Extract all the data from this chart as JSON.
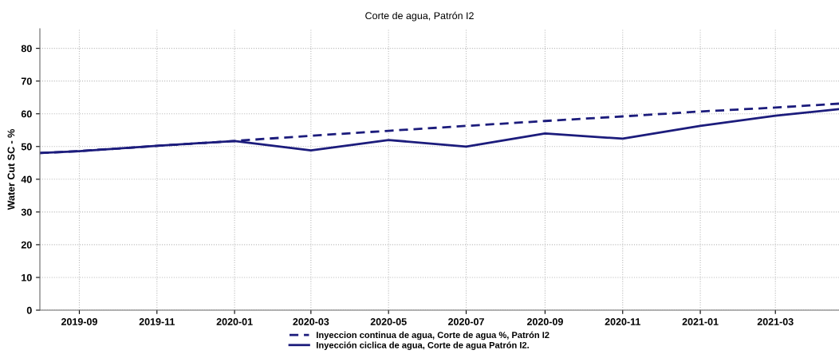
{
  "chart_data": {
    "type": "line",
    "title": "Corte de agua, Patrón I2",
    "ylabel": "Water Cut SC - %",
    "series": [
      {
        "name": "Inyeccion continua de agua, Corte de agua %, Patrón I2",
        "color": "#1c1c7c",
        "line_style": "dashed",
        "x": [
          "2019-08-01",
          "2019-09-01",
          "2019-11-01",
          "2020-01-01",
          "2020-03-01",
          "2020-05-01",
          "2020-07-01",
          "2020-09-01",
          "2020-11-01",
          "2021-01-01",
          "2021-03-01",
          "2021-04-20"
        ],
        "values": [
          48.0,
          48.6,
          50.2,
          51.7,
          53.3,
          54.8,
          56.3,
          57.8,
          59.2,
          60.7,
          61.9,
          63.1
        ]
      },
      {
        "name": "Inyección ciclica de agua, Corte de agua Patrón I2.",
        "color": "#1c1c7c",
        "line_style": "solid",
        "x": [
          "2019-08-01",
          "2019-09-01",
          "2019-11-01",
          "2020-01-01",
          "2020-03-01",
          "2020-05-01",
          "2020-07-01",
          "2020-09-01",
          "2020-11-01",
          "2021-01-01",
          "2021-03-01",
          "2021-04-20"
        ],
        "values": [
          48.0,
          48.6,
          50.2,
          51.7,
          48.8,
          52.0,
          50.0,
          54.0,
          52.4,
          56.3,
          59.4,
          61.4
        ]
      }
    ],
    "xlim": [
      "2019-08-01",
      "2021-04-20"
    ],
    "xticks": [
      {
        "value": "2019-09-01",
        "label": "2019-09"
      },
      {
        "value": "2019-11-01",
        "label": "2019-11"
      },
      {
        "value": "2020-01-01",
        "label": "2020-01"
      },
      {
        "value": "2020-03-01",
        "label": "2020-03"
      },
      {
        "value": "2020-05-01",
        "label": "2020-05"
      },
      {
        "value": "2020-07-01",
        "label": "2020-07"
      },
      {
        "value": "2020-09-01",
        "label": "2020-09"
      },
      {
        "value": "2020-11-01",
        "label": "2020-11"
      },
      {
        "value": "2021-01-01",
        "label": "2021-01"
      },
      {
        "value": "2021-03-01",
        "label": "2021-03"
      }
    ],
    "ylim": [
      0,
      86
    ],
    "yticks": [
      0,
      10,
      20,
      30,
      40,
      50,
      60,
      70,
      80
    ],
    "grid": true,
    "legend": "bottom",
    "marker": "none"
  }
}
